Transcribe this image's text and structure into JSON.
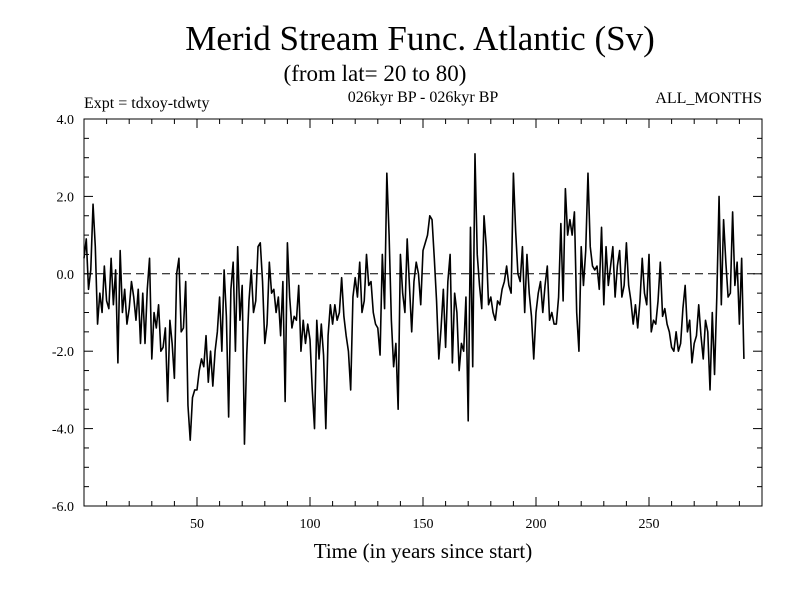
{
  "chart_data": {
    "type": "line",
    "title": "Merid Stream Func. Atlantic (Sv)",
    "subtitle": "(from lat= 20 to 80)",
    "header_left": "Expt = tdxoy-tdwty",
    "header_center": "026kyr BP - 026kyr BP",
    "header_right": "ALL_MONTHS",
    "xlabel": "Time (in years since start)",
    "ylabel": "",
    "xlim": [
      0,
      300
    ],
    "ylim": [
      -6.0,
      4.0
    ],
    "xticks": [
      50,
      100,
      150,
      200,
      250
    ],
    "xtick_labels": [
      "50",
      "100",
      "150",
      "200",
      "250"
    ],
    "yticks": [
      4.0,
      2.0,
      0.0,
      -2.0,
      -4.0,
      -6.0
    ],
    "ytick_labels": [
      "4.0",
      "2.0",
      "0.0",
      "-2.0",
      "-4.0",
      "-6.0"
    ],
    "reference_line": {
      "y": 0.0,
      "style": "dashed"
    },
    "grid": false,
    "series": [
      {
        "x_start": 0,
        "x_step": 1,
        "values": [
          0.4,
          0.9,
          -0.4,
          0.1,
          1.8,
          0.7,
          -1.3,
          -0.5,
          -1.0,
          0.2,
          -0.7,
          -0.9,
          0.4,
          -0.8,
          0.1,
          -2.3,
          0.6,
          -1.0,
          -0.4,
          -1.3,
          -0.9,
          -0.2,
          -0.6,
          -1.2,
          -0.4,
          -1.8,
          -0.5,
          -1.8,
          -0.4,
          0.4,
          -2.2,
          -1.0,
          -1.4,
          -0.8,
          -2.0,
          -1.9,
          -1.4,
          -3.3,
          -1.2,
          -1.8,
          -2.7,
          0.0,
          0.4,
          -1.5,
          -1.4,
          -0.2,
          -3.4,
          -4.3,
          -3.2,
          -3.0,
          -3.0,
          -2.5,
          -2.2,
          -2.4,
          -1.6,
          -2.8,
          -2.0,
          -2.9,
          -2.0,
          -1.5,
          -0.6,
          -2.0,
          0.1,
          -1.1,
          -3.7,
          -0.4,
          0.3,
          -2.0,
          0.7,
          -1.2,
          -0.3,
          -4.4,
          -2.1,
          -0.7,
          0.1,
          -1.0,
          -0.7,
          0.7,
          0.8,
          -0.2,
          -1.8,
          -1.3,
          0.3,
          -0.5,
          -0.4,
          -1.0,
          -0.6,
          -1.6,
          -0.2,
          -3.3,
          0.8,
          -0.6,
          -1.4,
          -1.1,
          -1.2,
          -0.3,
          -2.0,
          -1.2,
          -1.8,
          -1.3,
          -1.7,
          -3.0,
          -4.0,
          -1.2,
          -2.2,
          -1.3,
          -2.1,
          -4.0,
          -1.6,
          -0.8,
          -1.3,
          -0.8,
          -1.2,
          -1.0,
          -0.1,
          -1.1,
          -1.6,
          -2.0,
          -3.0,
          -0.6,
          -0.1,
          -0.6,
          0.3,
          -1.0,
          -0.7,
          0.5,
          -0.3,
          -0.2,
          -1.0,
          -1.3,
          -1.4,
          -2.1,
          0.5,
          -0.9,
          2.6,
          1.0,
          -1.2,
          -2.4,
          -1.8,
          -3.5,
          0.5,
          -0.5,
          -1.0,
          0.9,
          -0.3,
          -1.5,
          -0.2,
          0.3,
          0.0,
          -0.8,
          0.6,
          0.8,
          1.0,
          1.5,
          1.4,
          0.4,
          -0.7,
          -2.2,
          -1.4,
          -0.4,
          -1.9,
          -0.2,
          0.5,
          -2.3,
          -0.5,
          -1.0,
          -2.5,
          -1.8,
          -2.0,
          -0.6,
          -3.8,
          1.2,
          -2.4,
          3.1,
          0.5,
          -0.3,
          -0.9,
          1.5,
          0.7,
          -0.8,
          -0.6,
          -1.0,
          -1.2,
          -0.7,
          -0.8,
          -0.4,
          -0.2,
          0.2,
          -0.3,
          -0.5,
          2.6,
          1.1,
          0.0,
          -0.2,
          0.7,
          -1.0,
          0.5,
          -0.5,
          -1.1,
          -2.2,
          -1.0,
          -0.5,
          -0.2,
          -1.0,
          -0.3,
          0.2,
          -1.2,
          -1.0,
          -1.3,
          -1.3,
          -0.6,
          1.3,
          -0.7,
          2.2,
          1.0,
          1.4,
          1.0,
          1.6,
          -1.0,
          -2.0,
          0.7,
          -0.3,
          0.6,
          2.6,
          0.7,
          0.2,
          0.1,
          0.2,
          -0.4,
          1.2,
          -0.8,
          0.7,
          -0.3,
          0.2,
          0.7,
          -0.6,
          0.2,
          0.6,
          -0.6,
          -0.3,
          0.8,
          -0.3,
          -0.7,
          -1.3,
          -0.8,
          -1.4,
          -0.7,
          0.4,
          -0.5,
          -0.8,
          0.5,
          -1.5,
          -1.2,
          -1.3,
          -0.7,
          0.3,
          -1.1,
          -0.9,
          -1.3,
          -1.5,
          -1.9,
          -2.0,
          -1.5,
          -2.0,
          -1.8,
          -0.9,
          -0.3,
          -1.5,
          -1.2,
          -2.3,
          -1.8,
          -1.6,
          -0.8,
          -1.6,
          -2.2,
          -1.2,
          -1.5,
          -3.0,
          -1.0,
          -2.6,
          -0.6,
          2.0,
          -0.8,
          1.4,
          0.3,
          -0.6,
          -0.5,
          1.6,
          -0.3,
          0.3,
          -1.3,
          0.4,
          -2.2
        ]
      }
    ]
  }
}
